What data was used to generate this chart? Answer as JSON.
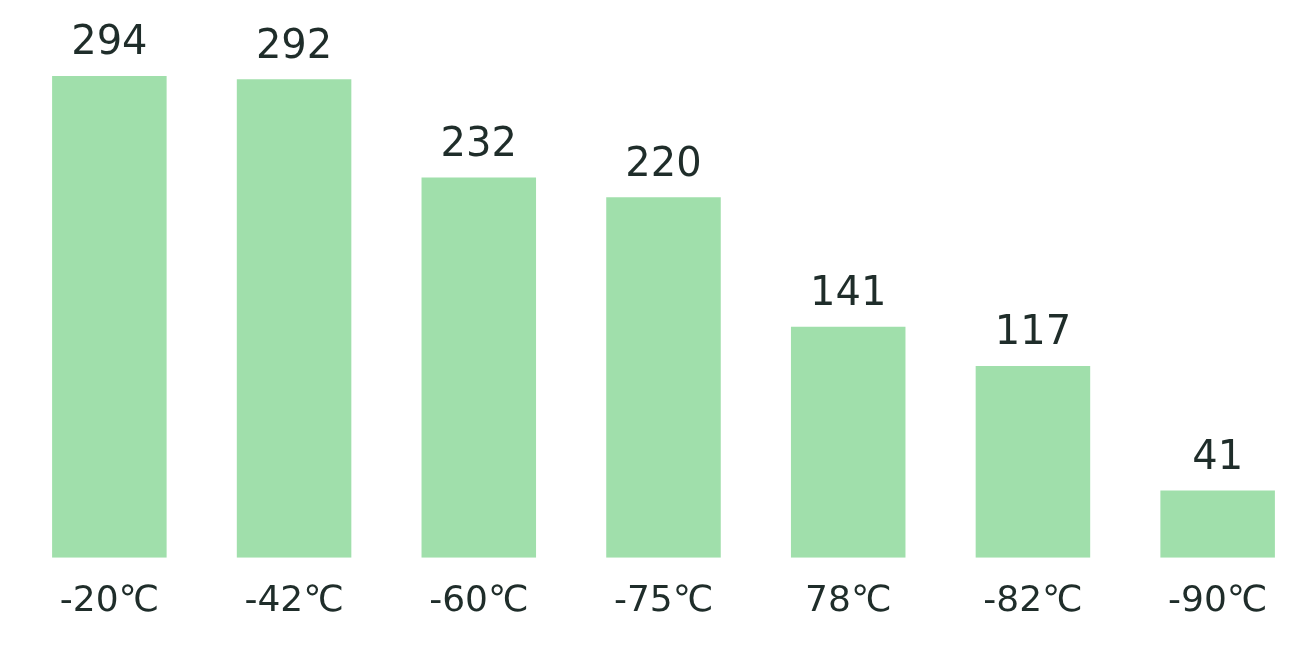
{
  "chart_data": {
    "type": "bar",
    "categories": [
      "-20℃",
      "-42℃",
      "-60℃",
      "-75℃",
      "78℃",
      "-82℃",
      "-90℃"
    ],
    "values": [
      294,
      292,
      232,
      220,
      141,
      117,
      41
    ],
    "color": "#a0dfab",
    "data_labels": true,
    "grid": false,
    "legend": false
  }
}
